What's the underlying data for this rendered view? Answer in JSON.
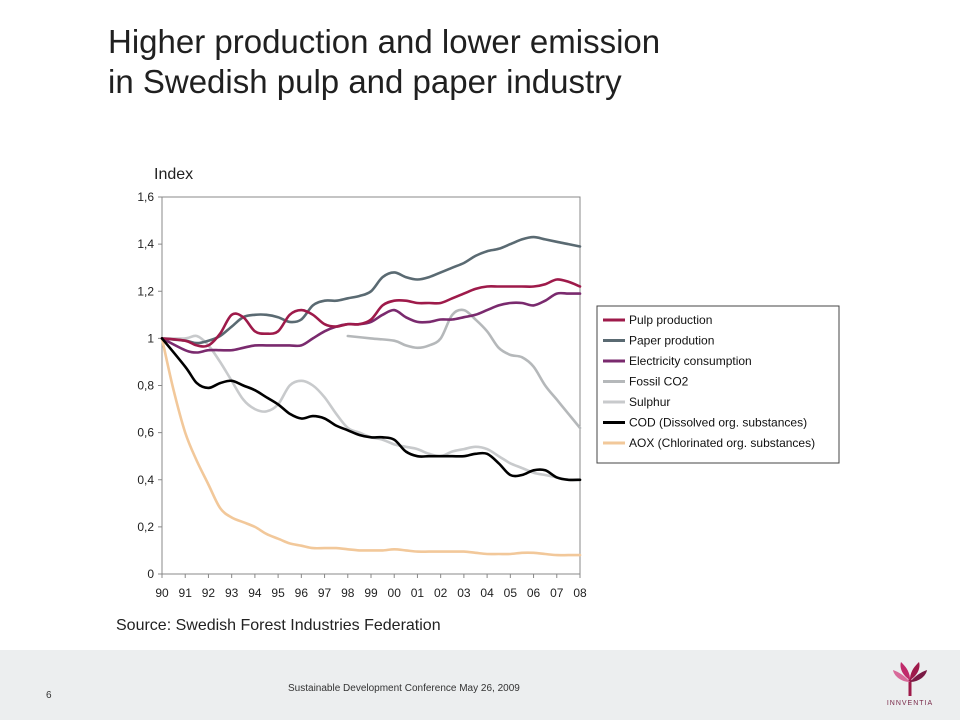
{
  "header": {
    "title_line1": "Higher production and lower emission",
    "title_line2": "in Swedish pulp and paper industry"
  },
  "chart_data": {
    "type": "line",
    "ylabel": "Index",
    "ylim": [
      0,
      1.6
    ],
    "yticks": [
      "0",
      "0,2",
      "0,4",
      "0,6",
      "0,8",
      "1",
      "1,2",
      "1,4",
      "1,6"
    ],
    "xticks": [
      "90",
      "91",
      "92",
      "93",
      "94",
      "95",
      "96",
      "97",
      "98",
      "99",
      "00",
      "01",
      "02",
      "03",
      "04",
      "05",
      "06",
      "07",
      "08"
    ],
    "legend_position": "right",
    "grid": false,
    "series": [
      {
        "name": "Pulp production",
        "color": "#9e1a4a",
        "x": [
          0,
          1,
          1.5,
          2,
          2.5,
          3,
          3.5,
          4,
          4.5,
          5,
          5.5,
          6,
          6.5,
          7,
          7.5,
          8,
          8.5,
          9,
          9.5,
          10,
          10.5,
          11,
          11.5,
          12,
          12.5,
          13,
          13.5,
          14,
          14.5,
          15,
          15.5,
          16,
          16.5,
          17,
          17.5,
          18
        ],
        "y": [
          1.0,
          0.99,
          0.97,
          0.97,
          1.02,
          1.1,
          1.09,
          1.03,
          1.02,
          1.03,
          1.1,
          1.12,
          1.1,
          1.06,
          1.05,
          1.06,
          1.06,
          1.08,
          1.14,
          1.16,
          1.16,
          1.15,
          1.15,
          1.15,
          1.17,
          1.19,
          1.21,
          1.22,
          1.22,
          1.22,
          1.22,
          1.22,
          1.23,
          1.25,
          1.24,
          1.22
        ]
      },
      {
        "name": "Paper prodution",
        "color": "#5a6a72",
        "x": [
          0,
          1,
          1.5,
          2,
          2.5,
          3,
          3.5,
          4,
          4.5,
          5,
          5.5,
          6,
          6.5,
          7,
          7.5,
          8,
          8.5,
          9,
          9.5,
          10,
          10.5,
          11,
          11.5,
          12,
          12.5,
          13,
          13.5,
          14,
          14.5,
          15,
          15.5,
          16,
          16.5,
          17,
          17.5,
          18
        ],
        "y": [
          1.0,
          0.99,
          0.98,
          0.99,
          1.01,
          1.05,
          1.09,
          1.1,
          1.1,
          1.09,
          1.07,
          1.08,
          1.14,
          1.16,
          1.16,
          1.17,
          1.18,
          1.2,
          1.26,
          1.28,
          1.26,
          1.25,
          1.26,
          1.28,
          1.3,
          1.32,
          1.35,
          1.37,
          1.38,
          1.4,
          1.42,
          1.43,
          1.42,
          1.41,
          1.4,
          1.39
        ]
      },
      {
        "name": "Electricity consumption",
        "color": "#7a2a6e",
        "x": [
          0,
          1,
          1.5,
          2,
          2.5,
          3,
          3.5,
          4,
          4.5,
          5,
          5.5,
          6,
          6.5,
          7,
          7.5,
          8,
          8.5,
          9,
          9.5,
          10,
          10.5,
          11,
          11.5,
          12,
          12.5,
          13,
          13.5,
          14,
          14.5,
          15,
          15.5,
          16,
          16.5,
          17,
          17.5,
          18
        ],
        "y": [
          1.0,
          0.95,
          0.94,
          0.95,
          0.95,
          0.95,
          0.96,
          0.97,
          0.97,
          0.97,
          0.97,
          0.97,
          1.0,
          1.03,
          1.05,
          1.06,
          1.06,
          1.07,
          1.1,
          1.12,
          1.09,
          1.07,
          1.07,
          1.08,
          1.08,
          1.09,
          1.1,
          1.12,
          1.14,
          1.15,
          1.15,
          1.14,
          1.16,
          1.19,
          1.19,
          1.19
        ]
      },
      {
        "name": "Fossil CO2",
        "color": "#b5b8ba",
        "x": [
          8,
          9,
          10,
          10.5,
          11,
          11.5,
          12,
          12.5,
          13,
          13.5,
          14,
          14.5,
          15,
          15.5,
          16,
          16.5,
          17,
          17.5,
          18
        ],
        "y": [
          1.01,
          1.0,
          0.99,
          0.97,
          0.96,
          0.97,
          1.0,
          1.1,
          1.12,
          1.08,
          1.03,
          0.96,
          0.93,
          0.92,
          0.88,
          0.8,
          0.74,
          0.68,
          0.62
        ]
      },
      {
        "name": "Sulphur",
        "color": "#c8cacc",
        "x": [
          0,
          1,
          1.5,
          2,
          2.5,
          3,
          3.5,
          4,
          4.5,
          5,
          5.5,
          6,
          6.5,
          7,
          7.5,
          8,
          8.5,
          9,
          9.5,
          10,
          10.5,
          11,
          11.5,
          12,
          12.5,
          13,
          13.5,
          14,
          14.5,
          15,
          15.5,
          16,
          16.5,
          17,
          17.5,
          18
        ],
        "y": [
          1.0,
          1.0,
          1.01,
          0.97,
          0.9,
          0.82,
          0.74,
          0.7,
          0.69,
          0.72,
          0.8,
          0.82,
          0.8,
          0.75,
          0.68,
          0.62,
          0.6,
          0.58,
          0.57,
          0.55,
          0.54,
          0.53,
          0.51,
          0.5,
          0.52,
          0.53,
          0.54,
          0.53,
          0.5,
          0.47,
          0.45,
          0.43,
          0.42,
          0.41,
          0.4,
          0.4
        ]
      },
      {
        "name": "COD (Dissolved org. substances)",
        "color": "#000000",
        "x": [
          0,
          1,
          1.5,
          2,
          2.5,
          3,
          3.5,
          4,
          4.5,
          5,
          5.5,
          6,
          6.5,
          7,
          7.5,
          8,
          8.5,
          9,
          9.5,
          10,
          10.5,
          11,
          11.5,
          12,
          12.5,
          13,
          13.5,
          14,
          14.5,
          15,
          15.5,
          16,
          16.5,
          17,
          17.5,
          18
        ],
        "y": [
          1.0,
          0.88,
          0.81,
          0.79,
          0.81,
          0.82,
          0.8,
          0.78,
          0.75,
          0.72,
          0.68,
          0.66,
          0.67,
          0.66,
          0.63,
          0.61,
          0.59,
          0.58,
          0.58,
          0.57,
          0.52,
          0.5,
          0.5,
          0.5,
          0.5,
          0.5,
          0.51,
          0.51,
          0.47,
          0.42,
          0.42,
          0.44,
          0.44,
          0.41,
          0.4,
          0.4
        ]
      },
      {
        "name": "AOX (Chlorinated org. substances)",
        "color": "#f2c89a",
        "x": [
          0,
          0.5,
          1,
          1.5,
          2,
          2.5,
          3,
          3.5,
          4,
          4.5,
          5,
          5.5,
          6,
          6.5,
          7,
          7.5,
          8,
          8.5,
          9,
          9.5,
          10,
          10.5,
          11,
          11.5,
          12,
          12.5,
          13,
          13.5,
          14,
          14.5,
          15,
          15.5,
          16,
          16.5,
          17,
          17.5,
          18
        ],
        "y": [
          1.0,
          0.78,
          0.6,
          0.48,
          0.38,
          0.28,
          0.24,
          0.22,
          0.2,
          0.17,
          0.15,
          0.13,
          0.12,
          0.11,
          0.11,
          0.11,
          0.105,
          0.1,
          0.1,
          0.1,
          0.105,
          0.1,
          0.095,
          0.095,
          0.095,
          0.095,
          0.095,
          0.09,
          0.085,
          0.085,
          0.085,
          0.09,
          0.09,
          0.085,
          0.08,
          0.08,
          0.08
        ]
      }
    ]
  },
  "source_text": "Source: Swedish Forest Industries Federation",
  "footer": {
    "page_number": "6",
    "text": "Sustainable Development Conference May 26, 2009",
    "logo_word": "INNVENTIA"
  }
}
